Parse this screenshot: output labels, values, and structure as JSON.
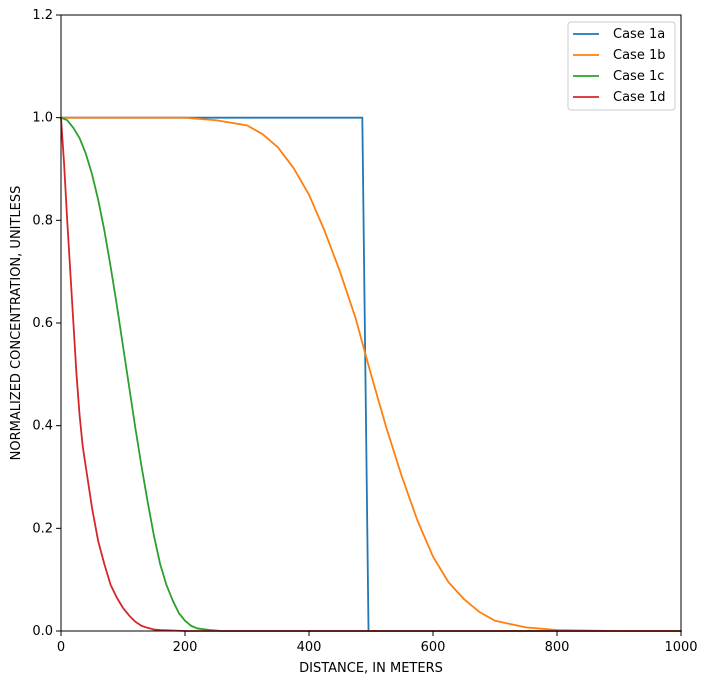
{
  "chart_data": {
    "type": "line",
    "title": "",
    "xlabel": "DISTANCE, IN METERS",
    "ylabel": "NORMALIZED CONCENTRATION, UNITLESS",
    "xlim": [
      0,
      1000
    ],
    "ylim": [
      0,
      1.2
    ],
    "xticks": [
      0,
      200,
      400,
      600,
      800,
      1000
    ],
    "yticks": [
      0.0,
      0.2,
      0.4,
      0.6,
      0.8,
      1.0,
      1.2
    ],
    "xtick_labels": [
      "0",
      "200",
      "400",
      "600",
      "800",
      "1000"
    ],
    "ytick_labels": [
      "0.0",
      "0.2",
      "0.4",
      "0.6",
      "0.8",
      "1.0",
      "1.2"
    ],
    "grid": false,
    "legend_position": "top-right",
    "series": [
      {
        "name": "Case 1a",
        "color": "#1f77b4",
        "x": [
          0,
          484,
          486,
          496,
          1000
        ],
        "y": [
          1.0,
          1.0,
          1.0,
          0.0,
          0.0
        ]
      },
      {
        "name": "Case 1b",
        "color": "#ff7f0e",
        "x": [
          0,
          100,
          200,
          250,
          300,
          325,
          350,
          375,
          400,
          425,
          450,
          475,
          500,
          525,
          550,
          575,
          600,
          625,
          650,
          675,
          700,
          750,
          800,
          900,
          1000
        ],
        "y": [
          1.0,
          1.0,
          1.0,
          0.995,
          0.985,
          0.968,
          0.942,
          0.902,
          0.85,
          0.78,
          0.7,
          0.61,
          0.5,
          0.395,
          0.3,
          0.215,
          0.145,
          0.095,
          0.062,
          0.037,
          0.02,
          0.007,
          0.002,
          0.0,
          0.0
        ]
      },
      {
        "name": "Case 1c",
        "color": "#2ca02c",
        "x": [
          0,
          10,
          20,
          30,
          40,
          50,
          60,
          70,
          80,
          90,
          100,
          110,
          120,
          130,
          140,
          150,
          160,
          170,
          180,
          190,
          200,
          210,
          220,
          240,
          260,
          300,
          400,
          1000
        ],
        "y": [
          1.0,
          0.995,
          0.98,
          0.96,
          0.93,
          0.89,
          0.84,
          0.78,
          0.71,
          0.635,
          0.555,
          0.475,
          0.395,
          0.32,
          0.25,
          0.185,
          0.13,
          0.09,
          0.06,
          0.035,
          0.02,
          0.01,
          0.005,
          0.002,
          0.0,
          0.0,
          0.0,
          0.0
        ]
      },
      {
        "name": "Case 1d",
        "color": "#d62728",
        "x": [
          0,
          5,
          10,
          15,
          20,
          25,
          30,
          35,
          40,
          50,
          60,
          70,
          80,
          90,
          100,
          110,
          120,
          130,
          140,
          150,
          160,
          180,
          200,
          250,
          1000
        ],
        "y": [
          1.0,
          0.91,
          0.8,
          0.7,
          0.6,
          0.5,
          0.42,
          0.36,
          0.32,
          0.24,
          0.175,
          0.13,
          0.09,
          0.065,
          0.045,
          0.03,
          0.018,
          0.01,
          0.006,
          0.003,
          0.002,
          0.001,
          0.0,
          0.0,
          0.0
        ]
      }
    ]
  }
}
